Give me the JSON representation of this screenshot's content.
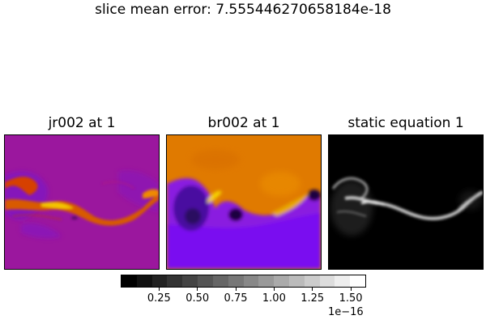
{
  "chart_data": {
    "type": "heatmap",
    "title": "slice mean error: 7.555446270658184e-18",
    "panels": [
      {
        "title": "jr002 at 1",
        "colormap": "gnuplot",
        "background": "#9b179e"
      },
      {
        "title": "br002 at 1",
        "colormap": "gnuplot",
        "background": "#e07a00"
      },
      {
        "title": "static equation 1",
        "colormap": "gray",
        "background": "#000000"
      }
    ],
    "colorbar": {
      "colormap": "gray",
      "levels": 16,
      "ticks": [
        "0.25",
        "0.50",
        "0.75",
        "1.00",
        "1.25",
        "1.50"
      ],
      "tick_values": [
        0.25,
        0.5,
        0.75,
        1.0,
        1.25,
        1.5
      ],
      "range": [
        0.0,
        1.6
      ],
      "offset_text": "1e−16"
    }
  }
}
